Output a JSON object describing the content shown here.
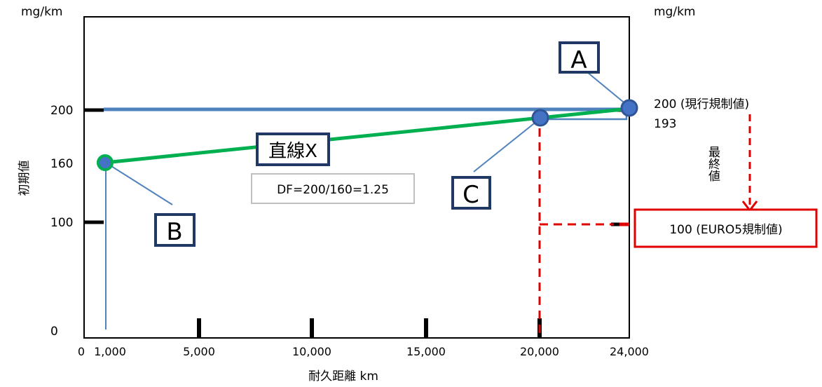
{
  "left_unit": "mg/km",
  "right_unit": "mg/km",
  "y_axis_title": "初期値",
  "x_axis_title": "耐久距離 km",
  "y_ticks": [
    "200",
    "160",
    "100",
    "0"
  ],
  "x_ticks": [
    "0",
    "1,000",
    "5,000",
    "10,000",
    "15,000",
    "20,000",
    "24,000"
  ],
  "right_labels": {
    "current_limit": "200 (現行規制値)",
    "value_193": "193",
    "final_value": "最終値",
    "euro5_limit": "100 (EURO5規制値)"
  },
  "callouts": {
    "A": "A",
    "B": "B",
    "C": "C",
    "line_x": "直線X"
  },
  "df_text": "DF=200/160=1.25",
  "colors": {
    "axis": "#000000",
    "blue_line": "#4f81bd",
    "green_line": "#00b050",
    "red": "#e00000",
    "callout_border": "#1f3864",
    "point_fill": "#4472c4"
  }
}
